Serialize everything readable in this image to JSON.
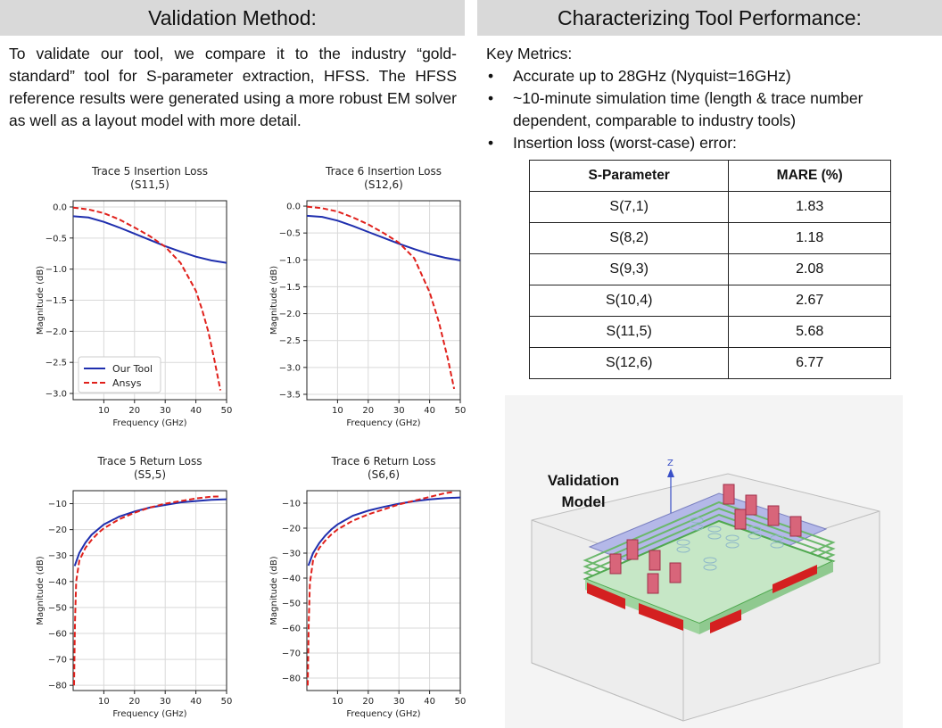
{
  "left_header": "Validation Method:",
  "right_header": "Characterizing Tool Performance:",
  "validation_text": "To validate our tool, we compare it to the industry “gold-standard” tool for S-parameter extraction, HFSS. The HFSS reference results were generated using a more robust EM solver as well as a layout model with more detail.",
  "metrics": {
    "title": "Key Metrics:",
    "bullets": [
      "Accurate up to 28GHz (Nyquist=16GHz)",
      "~10-minute simulation time (length & trace number dependent, comparable to industry tools)",
      "Insertion loss (worst-case) error:"
    ]
  },
  "table": {
    "headers": [
      "S-Parameter",
      "MARE (%)"
    ],
    "rows": [
      [
        "S(7,1)",
        "1.83"
      ],
      [
        "S(8,2)",
        "1.18"
      ],
      [
        "S(9,3)",
        "2.08"
      ],
      [
        "S(10,4)",
        "2.67"
      ],
      [
        "S(11,5)",
        "5.68"
      ],
      [
        "S(12,6)",
        "6.77"
      ]
    ]
  },
  "model": {
    "label_line1": "Validation",
    "label_line2": "Model",
    "axis_label": "Z"
  },
  "colors": {
    "our_tool": "#1f2fae",
    "ansys": "#e0201b",
    "header_bg": "#d9d9d9"
  },
  "chart_data": [
    {
      "type": "line",
      "title": "Trace 5 Insertion Loss",
      "subtitle": "(S11,5)",
      "xlabel": "Frequency (GHz)",
      "ylabel": "Magnitude (dB)",
      "xlim": [
        0,
        50
      ],
      "ylim": [
        -3.1,
        0.1
      ],
      "xticks": [
        10,
        20,
        30,
        40,
        50
      ],
      "yticks": [
        0.0,
        -0.5,
        -1.0,
        -1.5,
        -2.0,
        -2.5,
        -3.0
      ],
      "ytick_labels": [
        "0.0",
        "−0.5",
        "−1.0",
        "−1.5",
        "−2.0",
        "−2.5",
        "−3.0"
      ],
      "grid": true,
      "legend": "lower-left",
      "series": [
        {
          "name": "Our Tool",
          "style": "solid",
          "x": [
            0,
            5,
            10,
            15,
            20,
            25,
            30,
            35,
            40,
            45,
            50
          ],
          "y": [
            -0.15,
            -0.17,
            -0.24,
            -0.33,
            -0.43,
            -0.53,
            -0.63,
            -0.72,
            -0.8,
            -0.86,
            -0.9
          ]
        },
        {
          "name": "Ansys",
          "style": "dashed",
          "x": [
            0,
            5,
            10,
            15,
            20,
            25,
            30,
            35,
            40,
            42,
            44,
            46,
            48
          ],
          "y": [
            -0.01,
            -0.04,
            -0.1,
            -0.2,
            -0.33,
            -0.47,
            -0.64,
            -0.9,
            -1.35,
            -1.65,
            -2.0,
            -2.45,
            -2.95
          ]
        }
      ]
    },
    {
      "type": "line",
      "title": "Trace 6 Insertion Loss",
      "subtitle": "(S12,6)",
      "xlabel": "Frequency (GHz)",
      "ylabel": "Magnitude (dB)",
      "xlim": [
        0,
        50
      ],
      "ylim": [
        -3.6,
        0.1
      ],
      "xticks": [
        10,
        20,
        30,
        40,
        50
      ],
      "yticks": [
        0.0,
        -0.5,
        -1.0,
        -1.5,
        -2.0,
        -2.5,
        -3.0,
        -3.5
      ],
      "ytick_labels": [
        "0.0",
        "−0.5",
        "−1.0",
        "−1.5",
        "−2.0",
        "−2.5",
        "−3.0",
        "−3.5"
      ],
      "grid": true,
      "series": [
        {
          "name": "Our Tool",
          "style": "solid",
          "x": [
            0,
            5,
            10,
            15,
            20,
            25,
            30,
            35,
            40,
            45,
            50
          ],
          "y": [
            -0.18,
            -0.2,
            -0.27,
            -0.37,
            -0.48,
            -0.59,
            -0.7,
            -0.8,
            -0.89,
            -0.96,
            -1.01
          ]
        },
        {
          "name": "Ansys",
          "style": "dashed",
          "x": [
            0,
            5,
            10,
            15,
            20,
            25,
            30,
            35,
            40,
            43,
            46,
            48
          ],
          "y": [
            -0.01,
            -0.04,
            -0.1,
            -0.21,
            -0.34,
            -0.5,
            -0.68,
            -0.97,
            -1.6,
            -2.15,
            -2.85,
            -3.4
          ]
        }
      ]
    },
    {
      "type": "line",
      "title": "Trace 5 Return Loss",
      "subtitle": "(S5,5)",
      "xlabel": "Frequency (GHz)",
      "ylabel": "Magnitude (dB)",
      "xlim": [
        0,
        50
      ],
      "ylim": [
        -82,
        -5
      ],
      "xticks": [
        10,
        20,
        30,
        40,
        50
      ],
      "yticks": [
        -10,
        -20,
        -30,
        -40,
        -50,
        -60,
        -70,
        -80
      ],
      "ytick_labels": [
        "−10",
        "−20",
        "−30",
        "−40",
        "−50",
        "−60",
        "−70",
        "−80"
      ],
      "grid": true,
      "series": [
        {
          "name": "Our Tool",
          "style": "solid",
          "x": [
            0.5,
            2,
            4,
            6,
            8,
            10,
            15,
            20,
            25,
            30,
            35,
            40,
            45,
            50
          ],
          "y": [
            -34,
            -29,
            -25,
            -22,
            -20,
            -18,
            -15,
            -13,
            -11.5,
            -10.5,
            -9.5,
            -9,
            -8.5,
            -8.3
          ]
        },
        {
          "name": "Ansys",
          "style": "dashed",
          "x": [
            0.3,
            0.6,
            1,
            2,
            4,
            6,
            8,
            10,
            15,
            20,
            25,
            30,
            35,
            40,
            45,
            48
          ],
          "y": [
            -80,
            -55,
            -40,
            -32,
            -27,
            -24,
            -21.5,
            -19.5,
            -16,
            -13.5,
            -11.5,
            -10,
            -9,
            -8,
            -7.3,
            -7.2
          ]
        }
      ]
    },
    {
      "type": "line",
      "title": "Trace 6 Return Loss",
      "subtitle": "(S6,6)",
      "xlabel": "Frequency (GHz)",
      "ylabel": "Magnitude (dB)",
      "xlim": [
        0,
        50
      ],
      "ylim": [
        -85,
        -5
      ],
      "xticks": [
        10,
        20,
        30,
        40,
        50
      ],
      "yticks": [
        -10,
        -20,
        -30,
        -40,
        -50,
        -60,
        -70,
        -80
      ],
      "ytick_labels": [
        "−10",
        "−20",
        "−30",
        "−40",
        "−50",
        "−60",
        "−70",
        "−80"
      ],
      "grid": true,
      "series": [
        {
          "name": "Our Tool",
          "style": "solid",
          "x": [
            0.5,
            2,
            4,
            6,
            8,
            10,
            15,
            20,
            25,
            30,
            35,
            40,
            45,
            50
          ],
          "y": [
            -35,
            -30,
            -26,
            -23,
            -20.5,
            -18.5,
            -15,
            -13,
            -11.5,
            -10.2,
            -9.2,
            -8.5,
            -8,
            -7.7
          ]
        },
        {
          "name": "Ansys",
          "style": "dashed",
          "x": [
            0.3,
            0.6,
            1,
            2,
            4,
            6,
            8,
            10,
            15,
            20,
            25,
            30,
            35,
            40,
            45,
            48
          ],
          "y": [
            -83,
            -58,
            -42,
            -33,
            -28,
            -25,
            -22.5,
            -20.5,
            -17,
            -14.5,
            -12.5,
            -10.5,
            -9,
            -7.5,
            -6,
            -5.5
          ]
        }
      ]
    }
  ]
}
